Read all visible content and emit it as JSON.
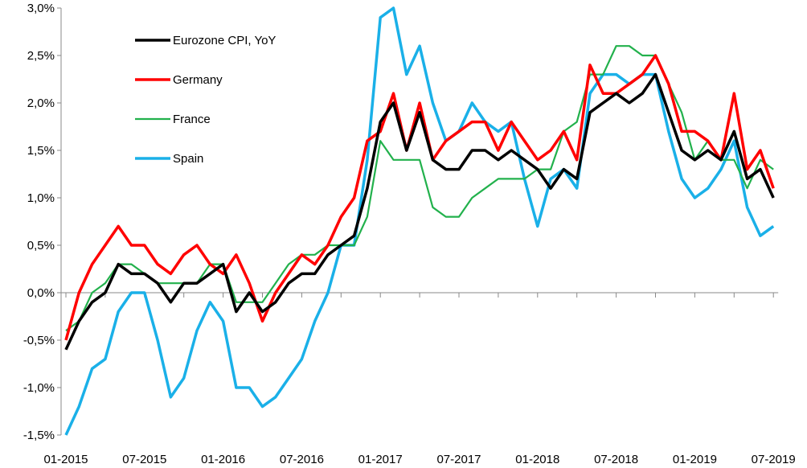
{
  "chart_data": {
    "type": "line",
    "title": "",
    "xlabel": "",
    "ylabel": "",
    "ylim": [
      -1.5,
      3.0
    ],
    "y_ticks": [
      "-1,5%",
      "-1,0%",
      "-0,5%",
      "0,0%",
      "0,5%",
      "1,0%",
      "1,5%",
      "2,0%",
      "2,5%",
      "3,0%"
    ],
    "y_tick_values": [
      -1.5,
      -1.0,
      -0.5,
      0.0,
      0.5,
      1.0,
      1.5,
      2.0,
      2.5,
      3.0
    ],
    "x_tick_labels": [
      "01-2015",
      "07-2015",
      "01-2016",
      "07-2016",
      "01-2017",
      "07-2017",
      "01-2018",
      "07-2018",
      "01-2019",
      "07-2019"
    ],
    "x": [
      "2015-01",
      "2015-02",
      "2015-03",
      "2015-04",
      "2015-05",
      "2015-06",
      "2015-07",
      "2015-08",
      "2015-09",
      "2015-10",
      "2015-11",
      "2015-12",
      "2016-01",
      "2016-02",
      "2016-03",
      "2016-04",
      "2016-05",
      "2016-06",
      "2016-07",
      "2016-08",
      "2016-09",
      "2016-10",
      "2016-11",
      "2016-12",
      "2017-01",
      "2017-02",
      "2017-03",
      "2017-04",
      "2017-05",
      "2017-06",
      "2017-07",
      "2017-08",
      "2017-09",
      "2017-10",
      "2017-11",
      "2017-12",
      "2018-01",
      "2018-02",
      "2018-03",
      "2018-04",
      "2018-05",
      "2018-06",
      "2018-07",
      "2018-08",
      "2018-09",
      "2018-10",
      "2018-11",
      "2018-12",
      "2019-01",
      "2019-02",
      "2019-03",
      "2019-04",
      "2019-05",
      "2019-06",
      "2019-07"
    ],
    "grid": false,
    "legend_position": "top-left",
    "series": [
      {
        "name": "Eurozone CPI, YoY",
        "color": "#000000",
        "values": [
          -0.6,
          -0.3,
          -0.1,
          0.0,
          0.3,
          0.2,
          0.2,
          0.1,
          -0.1,
          0.1,
          0.1,
          0.2,
          0.3,
          -0.2,
          0.0,
          -0.2,
          -0.1,
          0.1,
          0.2,
          0.2,
          0.4,
          0.5,
          0.6,
          1.1,
          1.8,
          2.0,
          1.5,
          1.9,
          1.4,
          1.3,
          1.3,
          1.5,
          1.5,
          1.4,
          1.5,
          1.4,
          1.3,
          1.1,
          1.3,
          1.2,
          1.9,
          2.0,
          2.1,
          2.0,
          2.1,
          2.3,
          1.9,
          1.5,
          1.4,
          1.5,
          1.4,
          1.7,
          1.2,
          1.3,
          1.0
        ]
      },
      {
        "name": "Germany",
        "color": "#ff0000",
        "values": [
          -0.5,
          0.0,
          0.3,
          0.5,
          0.7,
          0.5,
          0.5,
          0.3,
          0.2,
          0.4,
          0.5,
          0.3,
          0.2,
          0.4,
          0.1,
          -0.3,
          0.0,
          0.2,
          0.4,
          0.3,
          0.5,
          0.8,
          1.0,
          1.6,
          1.7,
          2.1,
          1.5,
          2.0,
          1.4,
          1.6,
          1.7,
          1.8,
          1.8,
          1.5,
          1.8,
          1.6,
          1.4,
          1.5,
          1.7,
          1.4,
          2.4,
          2.1,
          2.1,
          2.2,
          2.3,
          2.5,
          2.2,
          1.7,
          1.7,
          1.6,
          1.4,
          2.1,
          1.3,
          1.5,
          1.1
        ]
      },
      {
        "name": "France",
        "color": "#22b14c",
        "values": [
          -0.4,
          -0.3,
          0.0,
          0.1,
          0.3,
          0.3,
          0.2,
          0.1,
          0.1,
          0.1,
          0.1,
          0.3,
          0.3,
          -0.1,
          -0.1,
          -0.1,
          0.1,
          0.3,
          0.4,
          0.4,
          0.5,
          0.5,
          0.5,
          0.8,
          1.6,
          1.4,
          1.4,
          1.4,
          0.9,
          0.8,
          0.8,
          1.0,
          1.1,
          1.2,
          1.2,
          1.2,
          1.3,
          1.3,
          1.7,
          1.8,
          2.3,
          2.3,
          2.6,
          2.6,
          2.5,
          2.5,
          2.2,
          1.9,
          1.4,
          1.6,
          1.4,
          1.4,
          1.1,
          1.4,
          1.3
        ]
      },
      {
        "name": "Spain",
        "color": "#1ab0e8",
        "values": [
          -1.5,
          -1.2,
          -0.8,
          -0.7,
          -0.2,
          0.0,
          0.0,
          -0.5,
          -1.1,
          -0.9,
          -0.4,
          -0.1,
          -0.3,
          -1.0,
          -1.0,
          -1.2,
          -1.1,
          -0.9,
          -0.7,
          -0.3,
          0.0,
          0.5,
          0.5,
          1.4,
          2.9,
          3.0,
          2.3,
          2.6,
          2.0,
          1.6,
          1.7,
          2.0,
          1.8,
          1.7,
          1.8,
          1.2,
          0.7,
          1.2,
          1.3,
          1.1,
          2.1,
          2.3,
          2.3,
          2.2,
          2.3,
          2.3,
          1.7,
          1.2,
          1.0,
          1.1,
          1.3,
          1.6,
          0.9,
          0.6,
          0.7
        ]
      }
    ]
  }
}
